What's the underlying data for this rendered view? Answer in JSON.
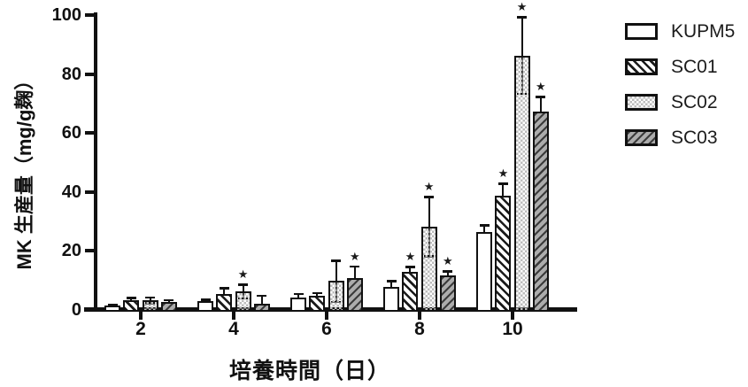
{
  "figure": {
    "background_color": "#ffffff",
    "axis_color": "#111111",
    "significance_marker": "★"
  },
  "chart_data": {
    "type": "bar",
    "title": "",
    "xlabel": "培養時間（日）",
    "ylabel": "MK 生産量（mg/g麹）",
    "categories": [
      "2",
      "4",
      "6",
      "8",
      "10"
    ],
    "ylim": [
      0,
      100
    ],
    "yticks": [
      0,
      20,
      40,
      60,
      80,
      100
    ],
    "grid": false,
    "legend_position": "right",
    "error_bars": "sd",
    "series": [
      {
        "name": "KUPM5",
        "pattern": "plain-white",
        "fill_color": "#ffffff",
        "values": [
          1.2,
          2.8,
          3.8,
          7.5,
          26
        ],
        "sd": [
          0.4,
          0.5,
          1.4,
          2.0,
          2.5
        ],
        "significant": [
          false,
          false,
          false,
          false,
          false
        ]
      },
      {
        "name": "SC01",
        "pattern": "diagonal-hatch-backslash",
        "fill_color": "#ffffff",
        "values": [
          3.0,
          5.0,
          4.5,
          12.5,
          38.5
        ],
        "sd": [
          0.8,
          2.2,
          1.0,
          1.8,
          4.0
        ],
        "significant": [
          false,
          false,
          false,
          true,
          true
        ]
      },
      {
        "name": "SC02",
        "pattern": "checkerboard",
        "fill_color": "#bdbdbd",
        "values": [
          3.0,
          6.0,
          9.5,
          28,
          86
        ],
        "sd": [
          1.0,
          2.3,
          7.0,
          10,
          13
        ],
        "significant": [
          false,
          true,
          false,
          true,
          true
        ]
      },
      {
        "name": "SC03",
        "pattern": "diagonal-hatch-forward-gray",
        "fill_color": "#acacac",
        "values": [
          2.5,
          1.8,
          10.5,
          11.5,
          67
        ],
        "sd": [
          0.6,
          2.8,
          4.0,
          1.3,
          5.0
        ],
        "significant": [
          false,
          false,
          true,
          true,
          true
        ]
      }
    ]
  }
}
